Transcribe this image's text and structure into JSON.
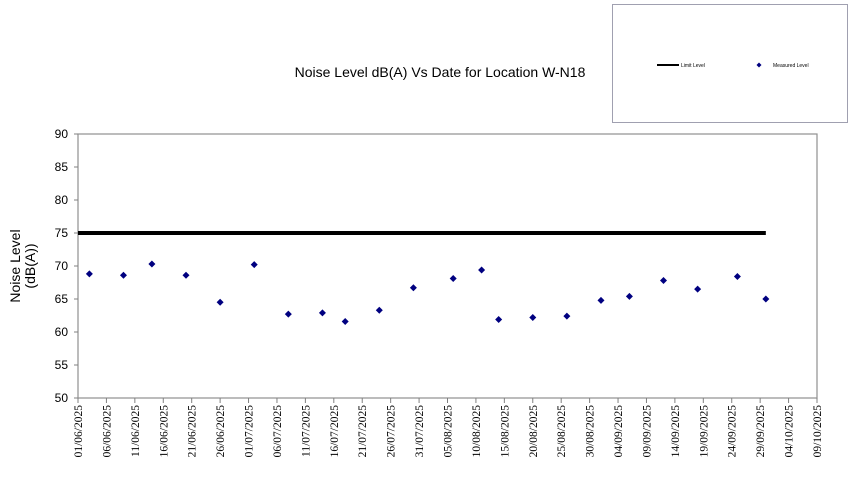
{
  "chart_data": {
    "type": "scatter",
    "title": "Noise Level dB(A) Vs Date for Location W-N18",
    "ylabel": "Noise Level\n(dB(A))",
    "xlabel": "",
    "ylim": [
      50,
      90
    ],
    "yticks": [
      50,
      55,
      60,
      65,
      70,
      75,
      80,
      85,
      90
    ],
    "xlim": [
      "01/06/2025",
      "09/10/2025"
    ],
    "xticks": [
      "01/06/2025",
      "06/06/2025",
      "11/06/2025",
      "16/06/2025",
      "21/06/2025",
      "26/06/2025",
      "01/07/2025",
      "06/07/2025",
      "11/07/2025",
      "16/07/2025",
      "21/07/2025",
      "26/07/2025",
      "31/07/2025",
      "05/08/2025",
      "10/08/2025",
      "15/08/2025",
      "20/08/2025",
      "25/08/2025",
      "30/08/2025",
      "04/09/2025",
      "09/09/2025",
      "14/09/2025",
      "19/09/2025",
      "24/09/2025",
      "29/09/2025",
      "04/10/2025",
      "09/10/2025"
    ],
    "grid": false,
    "legend_placement": "top-right",
    "series": [
      {
        "name": "Limit Level",
        "kind": "line",
        "color": "#000000",
        "x": [
          "01/06/2025",
          "30/09/2025"
        ],
        "y": [
          75,
          75
        ]
      },
      {
        "name": "Measured Level",
        "kind": "scatter",
        "marker": "diamond",
        "color": "#000080",
        "x": [
          "03/06/2025",
          "09/06/2025",
          "14/06/2025",
          "20/06/2025",
          "26/06/2025",
          "02/07/2025",
          "08/07/2025",
          "14/07/2025",
          "18/07/2025",
          "24/07/2025",
          "30/07/2025",
          "06/08/2025",
          "11/08/2025",
          "14/08/2025",
          "20/08/2025",
          "26/08/2025",
          "01/09/2025",
          "06/09/2025",
          "12/09/2025",
          "18/09/2025",
          "25/09/2025",
          "30/09/2025"
        ],
        "y": [
          68.8,
          68.6,
          70.3,
          68.6,
          64.5,
          70.2,
          62.7,
          62.9,
          61.6,
          63.3,
          66.7,
          68.1,
          69.4,
          61.9,
          62.2,
          62.4,
          64.8,
          65.4,
          67.8,
          66.5,
          68.4,
          65.0
        ]
      }
    ]
  }
}
